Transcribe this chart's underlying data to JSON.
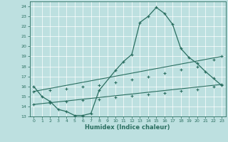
{
  "xlabel": "Humidex (Indice chaleur)",
  "xlim": [
    -0.5,
    23.5
  ],
  "ylim": [
    13,
    24.5
  ],
  "yticks": [
    13,
    14,
    15,
    16,
    17,
    18,
    19,
    20,
    21,
    22,
    23,
    24
  ],
  "xticks": [
    0,
    1,
    2,
    3,
    4,
    5,
    6,
    7,
    8,
    9,
    10,
    11,
    12,
    13,
    14,
    15,
    16,
    17,
    18,
    19,
    20,
    21,
    22,
    23
  ],
  "bg_color": "#bde0e0",
  "line_color": "#2a6e60",
  "grid_color": "#ffffff",
  "line1_x": [
    0,
    1,
    2,
    3,
    4,
    5,
    6,
    7,
    8,
    10,
    11,
    12,
    13,
    14,
    15,
    16,
    17,
    18,
    19,
    20,
    21,
    22,
    23
  ],
  "line1_y": [
    16.0,
    15.0,
    14.5,
    13.7,
    13.5,
    13.1,
    13.1,
    13.3,
    15.6,
    17.6,
    18.5,
    19.2,
    22.4,
    23.0,
    23.9,
    23.3,
    22.2,
    19.8,
    18.9,
    18.3,
    17.5,
    16.8,
    16.1
  ],
  "line2_x": [
    0,
    23
  ],
  "line2_y": [
    15.5,
    19.0
  ],
  "line3_x": [
    0,
    23
  ],
  "line3_y": [
    14.2,
    16.2
  ],
  "line2_markers_x": [
    0,
    2,
    4,
    6,
    8,
    10,
    12,
    14,
    16,
    18,
    20,
    22,
    23
  ],
  "line2_markers_y": [
    15.5,
    15.65,
    15.8,
    15.95,
    16.1,
    16.4,
    16.7,
    17.0,
    17.3,
    17.65,
    18.0,
    18.65,
    19.0
  ],
  "line3_markers_x": [
    0,
    2,
    4,
    6,
    8,
    10,
    12,
    14,
    16,
    18,
    20,
    22,
    23
  ],
  "line3_markers_y": [
    14.2,
    14.35,
    14.5,
    14.6,
    14.7,
    14.9,
    15.05,
    15.2,
    15.35,
    15.55,
    15.7,
    15.95,
    16.2
  ]
}
